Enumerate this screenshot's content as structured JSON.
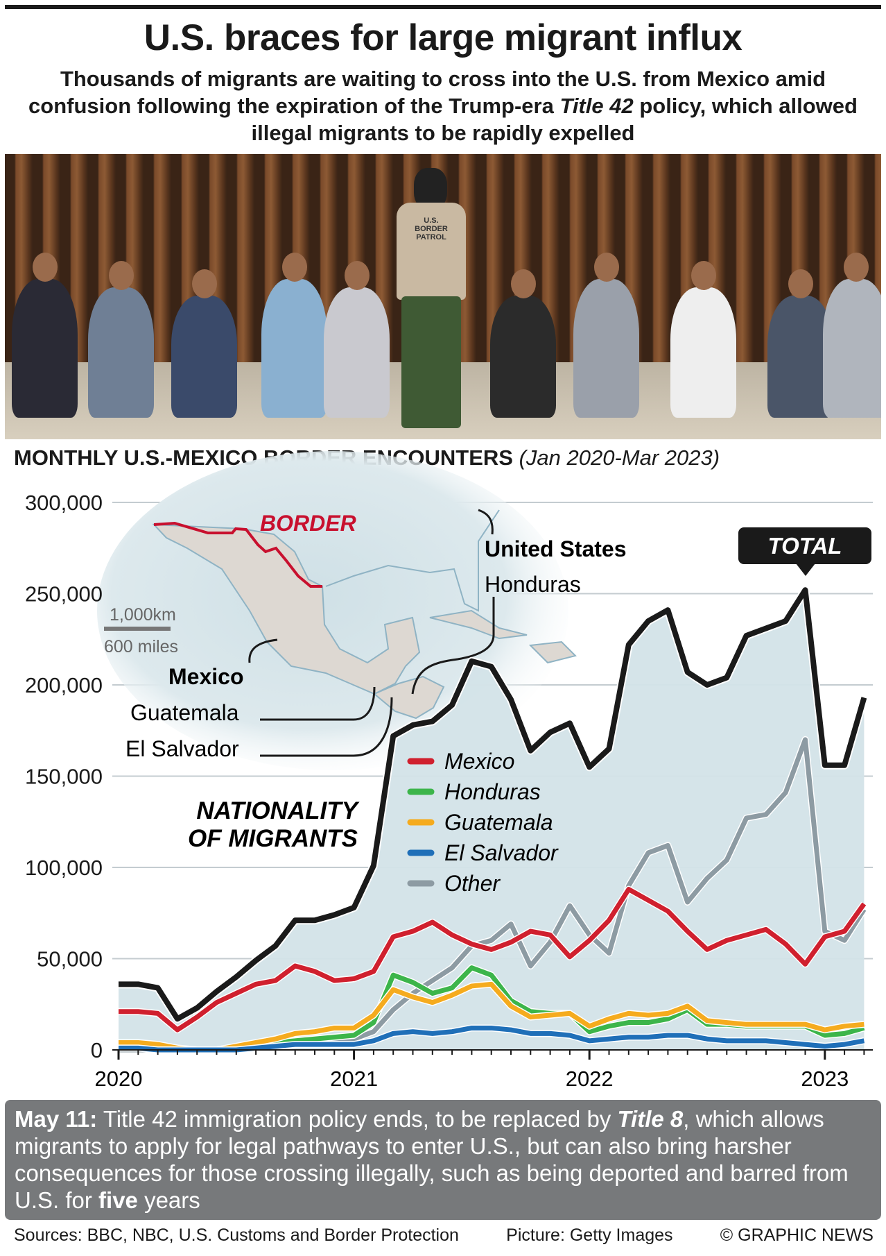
{
  "header": {
    "title": "U.S. braces for large migrant influx",
    "subtitle_part1": "Thousands of migrants are waiting to cross into the U.S. from Mexico amid confusion following the expiration of the Trump-era ",
    "subtitle_italic": "Title 42",
    "subtitle_part2": " policy, which allowed illegal migrants to be rapidly expelled"
  },
  "photo": {
    "vest_text": "U.S. BORDER PATROL"
  },
  "chart_head": {
    "title": "MONTHLY U.S.-MEXICO BORDER ENCOUNTERS",
    "range": "(Jan 2020-Mar 2023)"
  },
  "map": {
    "border_label": "BORDER",
    "labels": [
      "United States",
      "Honduras",
      "Mexico",
      "Guatemala",
      "El Salvador"
    ],
    "scale_km": "1,000km",
    "scale_miles": "600 miles"
  },
  "colors": {
    "total": "#1a1a1a",
    "area": "#d3e3e8",
    "mexico": "#d0202e",
    "honduras": "#3cb54a",
    "guatemala": "#f5ab1e",
    "el_salvador": "#1f6fb8",
    "other": "#8d9ba3",
    "border": "#c8102e"
  },
  "chart_data": {
    "type": "line",
    "title": "MONTHLY U.S.-MEXICO BORDER ENCOUNTERS (Jan 2020-Mar 2023)",
    "annotation": "NATIONALITY OF MIGRANTS",
    "total_label": "TOTAL",
    "x_start": "2020-01",
    "x_end": "2023-03",
    "x_ticks": [
      "2020",
      "2021",
      "2022",
      "2023"
    ],
    "y_ticks": [
      "0",
      "50,000",
      "100,000",
      "150,000",
      "200,000",
      "250,000",
      "300,000"
    ],
    "ylim": [
      0,
      300000
    ],
    "grid": true,
    "legend_placement": "center",
    "total": [
      36000,
      36000,
      34000,
      17000,
      23000,
      32000,
      40000,
      49000,
      57000,
      71000,
      71000,
      74000,
      78000,
      101000,
      172000,
      178000,
      180000,
      189000,
      213000,
      210000,
      192000,
      164000,
      174000,
      179000,
      155000,
      165000,
      222000,
      235000,
      241000,
      207000,
      200000,
      204000,
      227000,
      231000,
      235000,
      252000,
      156000,
      156000,
      193000
    ],
    "series": [
      {
        "name": "Mexico",
        "values": [
          21000,
          21000,
          20000,
          11000,
          18000,
          26000,
          31000,
          36000,
          38000,
          46000,
          43000,
          38000,
          39000,
          43000,
          62000,
          65000,
          70000,
          63000,
          58000,
          55000,
          59000,
          65000,
          63000,
          51000,
          60000,
          71000,
          88000,
          82000,
          76000,
          65000,
          55000,
          60000,
          63000,
          66000,
          58000,
          47000,
          62000,
          65000,
          80000
        ]
      },
      {
        "name": "Honduras",
        "values": [
          1000,
          1000,
          1000,
          0,
          0,
          0,
          1000,
          2000,
          4000,
          5000,
          6000,
          7000,
          8000,
          15000,
          41000,
          37000,
          31000,
          34000,
          45000,
          41000,
          27000,
          21000,
          20000,
          20000,
          10000,
          13000,
          15000,
          15000,
          17000,
          22000,
          14000,
          14000,
          13000,
          13000,
          13000,
          13000,
          8000,
          9000,
          12000
        ]
      },
      {
        "name": "Guatemala",
        "values": [
          4000,
          4000,
          3000,
          1000,
          0,
          0,
          2000,
          4000,
          6000,
          9000,
          10000,
          12000,
          12000,
          19000,
          33000,
          29000,
          26000,
          30000,
          35000,
          36000,
          24000,
          18000,
          19000,
          20000,
          13000,
          17000,
          20000,
          19000,
          20000,
          24000,
          16000,
          15000,
          14000,
          14000,
          14000,
          14000,
          11000,
          13000,
          14000
        ]
      },
      {
        "name": "El Salvador",
        "values": [
          1000,
          1000,
          0,
          0,
          0,
          0,
          0,
          1000,
          2000,
          3000,
          3000,
          3000,
          3000,
          5000,
          9000,
          10000,
          9000,
          10000,
          12000,
          12000,
          11000,
          9000,
          9000,
          8000,
          5000,
          6000,
          7000,
          7000,
          8000,
          8000,
          6000,
          5000,
          5000,
          5000,
          4000,
          3000,
          2000,
          3000,
          5000
        ]
      },
      {
        "name": "Other",
        "values": [
          0,
          0,
          0,
          0,
          0,
          0,
          0,
          1000,
          2000,
          3000,
          4000,
          6000,
          6000,
          10000,
          22000,
          31000,
          38000,
          45000,
          57000,
          60000,
          69000,
          46000,
          59000,
          79000,
          63000,
          53000,
          90000,
          108000,
          112000,
          81000,
          94000,
          104000,
          127000,
          129000,
          141000,
          170000,
          65000,
          60000,
          77000
        ]
      }
    ]
  },
  "note": {
    "date": "May 11:",
    "text1": " Title 42 immigration policy ends, to be replaced by ",
    "title8": "Title 8",
    "text2": ", which allows migrants to apply for legal pathways to enter U.S., but can also bring harsher consequences for those crossing illegally, such as being deported and barred from U.S. for ",
    "five": "five",
    "text3": " years"
  },
  "footer": {
    "sources": "Sources: BBC, NBC, U.S. Customs and Border Protection",
    "picture": "Picture: Getty Images",
    "copyright": "© GRAPHIC NEWS"
  }
}
